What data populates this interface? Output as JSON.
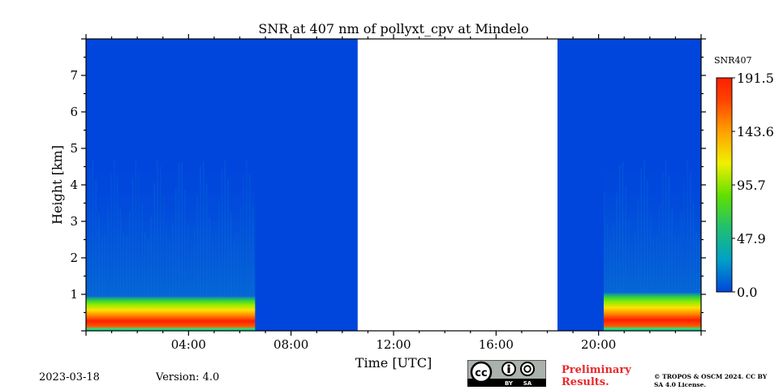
{
  "chart_data": {
    "type": "heatmap",
    "title": "SNR at 407 nm of pollyxt_cpv at Mindelo",
    "xlabel": "Time [UTC]",
    "ylabel": "Height [km]",
    "x_range_hours": [
      0,
      24
    ],
    "y_range_km": [
      0,
      8
    ],
    "x_ticks": [
      "04:00",
      "08:00",
      "12:00",
      "16:00",
      "20:00"
    ],
    "y_ticks": [
      "1",
      "2",
      "3",
      "4",
      "5",
      "6",
      "7"
    ],
    "colorbar": {
      "label": "SNR407",
      "min": 0.0,
      "max": 191.5,
      "ticks": [
        "0.0",
        "47.9",
        "95.7",
        "143.6",
        "191.5"
      ]
    },
    "data_segments": [
      {
        "start_hour": 0.0,
        "end_hour": 6.6,
        "aerosol_top_km": 0.95,
        "high_signal_top_km": 0.7
      },
      {
        "start_hour": 6.6,
        "end_hour": 10.6,
        "state": "low SNR only"
      },
      {
        "start_hour": 10.6,
        "end_hour": 18.4,
        "state": "no data"
      },
      {
        "start_hour": 18.4,
        "end_hour": 20.2,
        "state": "low SNR only"
      },
      {
        "start_hour": 20.2,
        "end_hour": 24.0,
        "aerosol_top_km": 1.05,
        "high_signal_top_km": 0.7
      }
    ]
  },
  "footer": {
    "date": "2023-03-18",
    "version": "Version: 4.0",
    "preliminary": "Preliminary Results.",
    "copyright": "© TROPOS & OSCM 2024. CC BY SA 4.0 License.",
    "cc_text": "cc",
    "cc_by": "BY",
    "cc_sa": "SA"
  },
  "colors": {
    "background_blue": "#0046dc",
    "preliminary_red": "#e8282b"
  }
}
